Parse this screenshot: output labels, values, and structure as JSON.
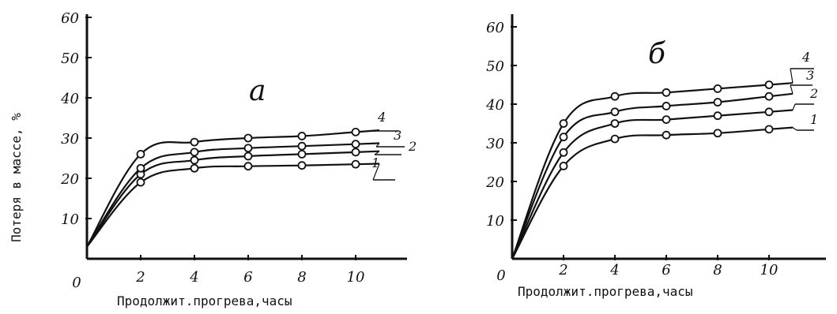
{
  "chart_data": [
    {
      "type": "line",
      "panel_label": "a",
      "xlabel": "Продолжит.прогрева,часы",
      "ylabel": "Потеря в массе, %",
      "xlim": [
        0,
        12
      ],
      "ylim": [
        0,
        65
      ],
      "xticks": [
        "0",
        "2",
        "4",
        "6",
        "8",
        "10"
      ],
      "yticks": [
        "10",
        "20",
        "30",
        "40",
        "50",
        "60"
      ],
      "grid": false,
      "series": [
        {
          "name": "1",
          "x": [
            0,
            2,
            4,
            6,
            8,
            10
          ],
          "y": [
            3,
            19,
            22.5,
            23,
            23.2,
            23.5
          ]
        },
        {
          "name": "2",
          "x": [
            0,
            2,
            4,
            6,
            8,
            10
          ],
          "y": [
            3,
            21,
            24.5,
            25.5,
            26,
            26.5
          ]
        },
        {
          "name": "3",
          "x": [
            0,
            2,
            4,
            6,
            8,
            10
          ],
          "y": [
            3,
            22.5,
            26.5,
            27.5,
            28,
            28.5
          ]
        },
        {
          "name": "4",
          "x": [
            0,
            2,
            4,
            6,
            8,
            10
          ],
          "y": [
            3,
            26,
            29,
            30,
            30.5,
            31.5
          ]
        }
      ]
    },
    {
      "type": "line",
      "panel_label": "б",
      "xlabel": "Продолжит.прогрева,часы",
      "ylabel": "",
      "xlim": [
        0,
        12
      ],
      "ylim": [
        0,
        63
      ],
      "xticks": [
        "0",
        "2",
        "4",
        "6",
        "8",
        "10"
      ],
      "yticks": [
        "10",
        "20",
        "30",
        "40",
        "50",
        "60"
      ],
      "grid": false,
      "series": [
        {
          "name": "1",
          "x": [
            0,
            2,
            4,
            6,
            8,
            10
          ],
          "y": [
            0,
            24,
            31,
            32,
            32.5,
            33.5
          ]
        },
        {
          "name": "2",
          "x": [
            0,
            2,
            4,
            6,
            8,
            10
          ],
          "y": [
            0,
            27.5,
            35,
            36,
            37,
            38
          ]
        },
        {
          "name": "3",
          "x": [
            0,
            2,
            4,
            6,
            8,
            10
          ],
          "y": [
            0,
            31.5,
            38,
            39.5,
            40.5,
            42
          ]
        },
        {
          "name": "4",
          "x": [
            0,
            2,
            4,
            6,
            8,
            10
          ],
          "y": [
            0,
            35,
            42,
            43,
            44,
            45
          ]
        }
      ]
    }
  ]
}
